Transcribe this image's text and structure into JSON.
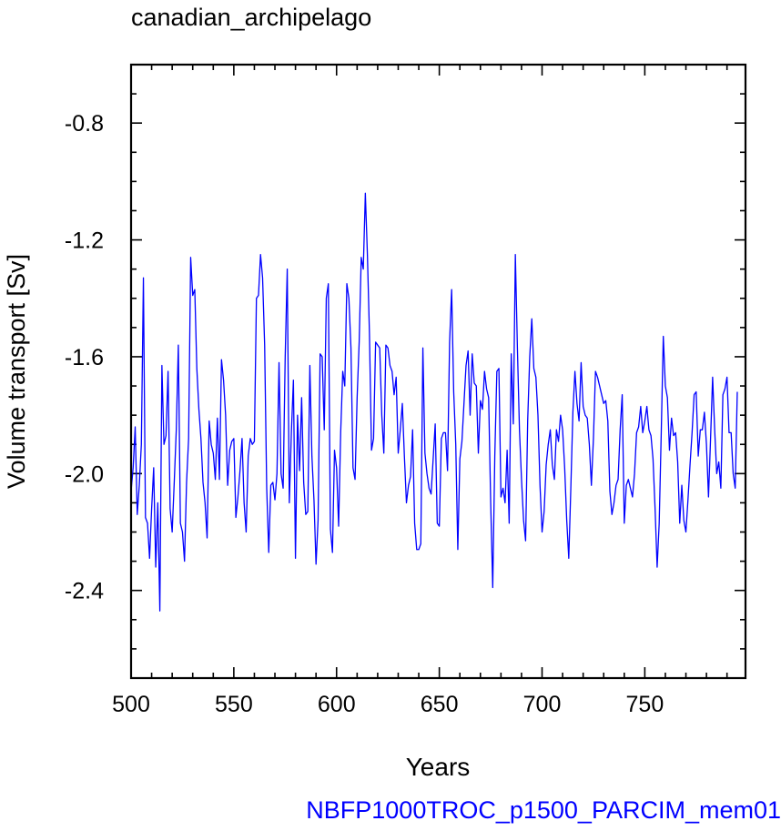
{
  "chart_data": {
    "type": "line",
    "title": "canadian_archipelago",
    "xlabel": "Years",
    "ylabel": "Volume transport [Sv]",
    "caption": "NBFP1000TROC_p1500_PARCIM_mem01",
    "xlim": [
      500,
      799
    ],
    "ylim": [
      -2.7,
      -0.6
    ],
    "xticks": [
      500,
      550,
      600,
      650,
      700,
      750
    ],
    "xtick_labels": [
      "500",
      "550",
      "600",
      "650",
      "700",
      "750"
    ],
    "yticks": [
      -2.4,
      -2.0,
      -1.6,
      -1.2,
      -0.8
    ],
    "ytick_labels": [
      "-2.4",
      "-2.0",
      "-1.6",
      "-1.2",
      "-0.8"
    ],
    "grid": false,
    "line_color": "#0000ff",
    "caption_color": "#0000ff",
    "x_start": 500,
    "values": [
      -2.06,
      -1.98,
      -1.84,
      -2.14,
      -2.04,
      -1.9,
      -1.33,
      -2.15,
      -2.17,
      -2.29,
      -2.12,
      -1.98,
      -2.32,
      -2.1,
      -2.47,
      -1.63,
      -1.9,
      -1.87,
      -1.65,
      -2.12,
      -2.2,
      -2.03,
      -1.85,
      -1.56,
      -2.17,
      -2.2,
      -2.3,
      -2.03,
      -1.88,
      -1.26,
      -1.39,
      -1.37,
      -1.64,
      -1.78,
      -1.88,
      -2.03,
      -2.1,
      -2.22,
      -1.82,
      -1.9,
      -1.93,
      -2.02,
      -1.81,
      -2.02,
      -1.61,
      -1.68,
      -1.8,
      -2.04,
      -1.92,
      -1.89,
      -1.88,
      -2.15,
      -2.08,
      -1.99,
      -1.88,
      -2.1,
      -2.2,
      -1.94,
      -1.88,
      -1.9,
      -1.89,
      -1.4,
      -1.39,
      -1.25,
      -1.33,
      -1.56,
      -2.05,
      -2.27,
      -2.04,
      -2.03,
      -2.09,
      -2.0,
      -1.62,
      -2.0,
      -2.05,
      -1.6,
      -1.3,
      -2.1,
      -1.86,
      -1.68,
      -2.29,
      -1.8,
      -1.99,
      -1.74,
      -2.03,
      -2.14,
      -2.13,
      -1.63,
      -1.94,
      -2.09,
      -2.31,
      -2.16,
      -1.59,
      -1.6,
      -1.85,
      -1.4,
      -1.35,
      -2.19,
      -2.27,
      -1.92,
      -1.98,
      -2.18,
      -1.86,
      -1.65,
      -1.7,
      -1.35,
      -1.4,
      -1.57,
      -1.98,
      -2.02,
      -1.74,
      -1.55,
      -1.26,
      -1.3,
      -1.04,
      -1.25,
      -1.52,
      -1.92,
      -1.88,
      -1.55,
      -1.56,
      -1.57,
      -1.8,
      -1.93,
      -1.56,
      -1.57,
      -1.63,
      -1.65,
      -1.73,
      -1.67,
      -1.93,
      -1.85,
      -1.76,
      -1.94,
      -2.1,
      -2.04,
      -2.01,
      -1.85,
      -2.17,
      -2.26,
      -2.26,
      -2.24,
      -1.57,
      -1.93,
      -2.0,
      -2.05,
      -2.07,
      -1.95,
      -1.83,
      -2.17,
      -2.18,
      -1.88,
      -1.86,
      -1.86,
      -1.99,
      -1.55,
      -1.37,
      -1.72,
      -1.9,
      -2.26,
      -1.95,
      -1.89,
      -1.76,
      -1.63,
      -1.58,
      -1.8,
      -1.59,
      -1.69,
      -1.7,
      -1.93,
      -1.75,
      -1.78,
      -1.65,
      -1.71,
      -1.74,
      -2.1,
      -2.39,
      -1.94,
      -1.65,
      -1.64,
      -2.08,
      -2.05,
      -2.1,
      -1.92,
      -2.17,
      -1.59,
      -1.83,
      -1.25,
      -1.57,
      -1.85,
      -2.02,
      -2.16,
      -2.23,
      -1.82,
      -1.6,
      -1.47,
      -1.64,
      -1.67,
      -1.8,
      -2.04,
      -2.2,
      -2.13,
      -1.97,
      -1.9,
      -1.85,
      -1.97,
      -2.02,
      -1.85,
      -1.89,
      -1.8,
      -1.85,
      -1.98,
      -2.16,
      -2.29,
      -2.05,
      -1.79,
      -1.65,
      -1.76,
      -1.82,
      -1.62,
      -1.77,
      -1.8,
      -1.81,
      -1.9,
      -2.04,
      -1.88,
      -1.65,
      -1.67,
      -1.7,
      -1.73,
      -1.76,
      -1.75,
      -1.82,
      -2.06,
      -2.14,
      -2.1,
      -2.04,
      -2.02,
      -1.85,
      -1.73,
      -2.17,
      -2.04,
      -2.02,
      -2.05,
      -2.08,
      -2.0,
      -1.86,
      -1.84,
      -1.77,
      -1.86,
      -1.82,
      -1.77,
      -1.85,
      -1.87,
      -1.95,
      -2.12,
      -2.32,
      -2.17,
      -1.86,
      -1.53,
      -1.7,
      -1.74,
      -1.92,
      -1.81,
      -1.87,
      -1.86,
      -1.96,
      -2.17,
      -2.04,
      -2.16,
      -2.2,
      -2.09,
      -1.97,
      -1.86,
      -1.73,
      -1.72,
      -1.94,
      -1.85,
      -1.85,
      -1.79,
      -1.9,
      -2.08,
      -1.88,
      -1.67,
      -1.85,
      -2.0,
      -1.96,
      -2.05,
      -1.73,
      -1.71,
      -1.67,
      -1.86,
      -1.86,
      -2.0,
      -2.05,
      -1.72
    ]
  }
}
